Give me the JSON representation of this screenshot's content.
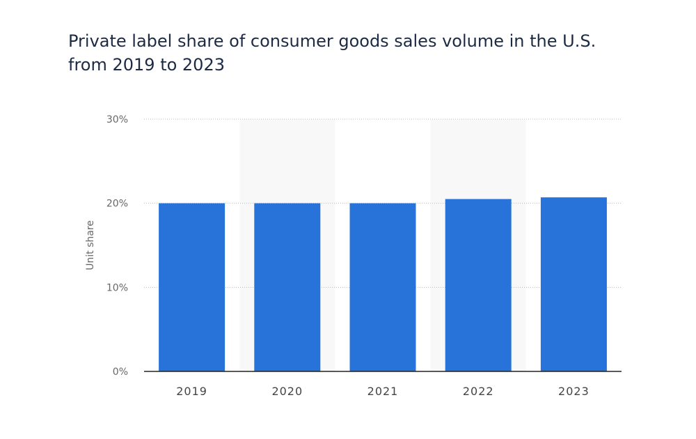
{
  "chart_data": {
    "type": "bar",
    "title": "Private label share of consumer goods sales volume in the U.S. from 2019 to 2023",
    "xlabel": "",
    "ylabel": "Unit share",
    "categories": [
      "2019",
      "2020",
      "2021",
      "2022",
      "2023"
    ],
    "values": [
      20.0,
      20.0,
      20.0,
      20.5,
      20.7
    ],
    "ylim": [
      0,
      30
    ],
    "yticks": [
      "0%",
      "10%",
      "20%",
      "30%"
    ],
    "grid": true,
    "bar_color": "#2873d9"
  }
}
